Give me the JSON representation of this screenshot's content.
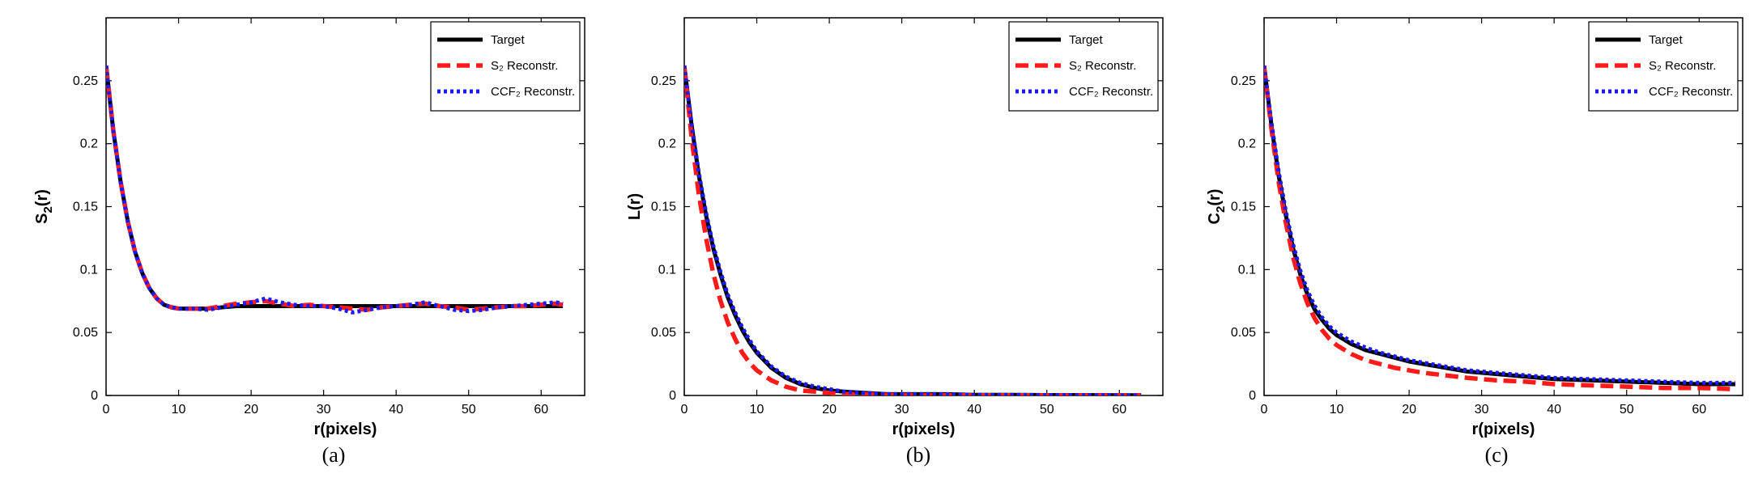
{
  "colors": {
    "target": "#000000",
    "s2": "#ff1a1a",
    "ccf2": "#1a1aff"
  },
  "chart_data": [
    {
      "type": "line",
      "ylabel_main": "S",
      "ylabel_sub": "2",
      "ylabel_tail": "(r)",
      "xlabel": "r(pixels)",
      "caption": "(a)",
      "xlim": [
        0,
        66
      ],
      "ylim": [
        0,
        0.3
      ],
      "xticks": [
        0,
        10,
        20,
        30,
        40,
        50,
        60
      ],
      "yticks": [
        0,
        0.05,
        0.1,
        0.15,
        0.2,
        0.25
      ],
      "ytick_labels": [
        "0",
        "0.05",
        "0.1",
        "0.15",
        "0.2",
        "0.25"
      ],
      "legend": [
        "Target",
        "S₂ Reconstr.",
        "CCF₂ Reconstr."
      ],
      "series": [
        {
          "name": "Target",
          "style": "solid",
          "x": [
            0,
            1,
            2,
            3,
            4,
            5,
            6,
            7,
            8,
            9,
            10,
            12,
            14,
            16,
            18,
            20,
            22,
            24,
            26,
            28,
            30,
            32,
            34,
            36,
            38,
            40,
            42,
            44,
            46,
            48,
            50,
            52,
            54,
            56,
            58,
            60,
            62,
            63
          ],
          "y": [
            0.262,
            0.21,
            0.17,
            0.138,
            0.114,
            0.097,
            0.085,
            0.077,
            0.072,
            0.07,
            0.069,
            0.069,
            0.069,
            0.07,
            0.071,
            0.071,
            0.071,
            0.071,
            0.071,
            0.071,
            0.071,
            0.071,
            0.071,
            0.071,
            0.071,
            0.071,
            0.071,
            0.071,
            0.071,
            0.071,
            0.071,
            0.071,
            0.071,
            0.071,
            0.071,
            0.071,
            0.071,
            0.071
          ]
        },
        {
          "name": "S₂ Reconstr.",
          "style": "dashed",
          "x": [
            0,
            1,
            2,
            3,
            4,
            5,
            6,
            7,
            8,
            9,
            10,
            12,
            14,
            16,
            18,
            20,
            22,
            24,
            26,
            28,
            30,
            32,
            34,
            36,
            38,
            40,
            42,
            44,
            46,
            48,
            50,
            52,
            54,
            56,
            58,
            60,
            62,
            63
          ],
          "y": [
            0.262,
            0.21,
            0.17,
            0.138,
            0.114,
            0.097,
            0.085,
            0.077,
            0.072,
            0.07,
            0.069,
            0.069,
            0.069,
            0.071,
            0.073,
            0.074,
            0.075,
            0.073,
            0.071,
            0.072,
            0.071,
            0.07,
            0.069,
            0.068,
            0.07,
            0.071,
            0.072,
            0.073,
            0.071,
            0.07,
            0.068,
            0.069,
            0.07,
            0.071,
            0.071,
            0.072,
            0.073,
            0.072
          ]
        },
        {
          "name": "CCF₂ Reconstr.",
          "style": "dotted",
          "x": [
            0,
            1,
            2,
            3,
            4,
            5,
            6,
            7,
            8,
            9,
            10,
            12,
            14,
            16,
            18,
            20,
            22,
            24,
            26,
            28,
            30,
            32,
            34,
            36,
            38,
            40,
            42,
            44,
            46,
            48,
            50,
            52,
            54,
            56,
            58,
            60,
            62,
            63
          ],
          "y": [
            0.262,
            0.21,
            0.17,
            0.138,
            0.114,
            0.097,
            0.085,
            0.077,
            0.072,
            0.07,
            0.069,
            0.069,
            0.068,
            0.07,
            0.072,
            0.074,
            0.077,
            0.074,
            0.072,
            0.071,
            0.071,
            0.069,
            0.066,
            0.068,
            0.07,
            0.071,
            0.072,
            0.074,
            0.071,
            0.068,
            0.067,
            0.068,
            0.07,
            0.071,
            0.072,
            0.073,
            0.074,
            0.073
          ]
        }
      ]
    },
    {
      "type": "line",
      "ylabel_main": "L(r)",
      "ylabel_sub": "",
      "ylabel_tail": "",
      "xlabel": "r(pixels)",
      "caption": "(b)",
      "xlim": [
        0,
        66
      ],
      "ylim": [
        0,
        0.3
      ],
      "xticks": [
        0,
        10,
        20,
        30,
        40,
        50,
        60
      ],
      "yticks": [
        0,
        0.05,
        0.1,
        0.15,
        0.2,
        0.25
      ],
      "ytick_labels": [
        "0",
        "0.05",
        "0.1",
        "0.15",
        "0.2",
        "0.25"
      ],
      "legend": [
        "Target",
        "S₂ Reconstr.",
        "CCF₂ Reconstr."
      ],
      "series": [
        {
          "name": "Target",
          "style": "solid",
          "x": [
            0,
            1,
            2,
            3,
            4,
            5,
            6,
            7,
            8,
            9,
            10,
            12,
            14,
            16,
            18,
            20,
            22,
            25,
            28,
            32,
            36,
            40,
            45,
            50,
            55,
            60,
            63
          ],
          "y": [
            0.262,
            0.215,
            0.175,
            0.143,
            0.117,
            0.096,
            0.078,
            0.064,
            0.052,
            0.042,
            0.034,
            0.022,
            0.014,
            0.009,
            0.006,
            0.004,
            0.003,
            0.002,
            0.001,
            0.001,
            0.001,
            0.0005,
            0.0005,
            0.0003,
            0.0003,
            0.0002,
            0.0002
          ]
        },
        {
          "name": "S₂ Reconstr.",
          "style": "dashed",
          "x": [
            0,
            1,
            2,
            3,
            4,
            5,
            6,
            7,
            8,
            9,
            10,
            12,
            14,
            16,
            18,
            20,
            22,
            25,
            28,
            32,
            36,
            40,
            45,
            50,
            55,
            60,
            63
          ],
          "y": [
            0.262,
            0.205,
            0.16,
            0.125,
            0.097,
            0.075,
            0.058,
            0.045,
            0.034,
            0.026,
            0.02,
            0.012,
            0.007,
            0.004,
            0.003,
            0.002,
            0.001,
            0.001,
            0.0005,
            0.0003,
            0.0002,
            0.0002,
            0.0001,
            0.0001,
            0.0001,
            0.0001,
            0.0001
          ]
        },
        {
          "name": "CCF₂ Reconstr.",
          "style": "dotted",
          "x": [
            0,
            1,
            2,
            3,
            4,
            5,
            6,
            7,
            8,
            9,
            10,
            12,
            14,
            16,
            18,
            20,
            22,
            25,
            28,
            32,
            36,
            40,
            45,
            50,
            55,
            60,
            63
          ],
          "y": [
            0.262,
            0.216,
            0.177,
            0.145,
            0.119,
            0.098,
            0.08,
            0.066,
            0.054,
            0.044,
            0.035,
            0.023,
            0.015,
            0.01,
            0.007,
            0.005,
            0.003,
            0.002,
            0.001,
            0.001,
            0.001,
            0.0005,
            0.0005,
            0.0003,
            0.0003,
            0.0002,
            0.0002
          ]
        }
      ]
    },
    {
      "type": "line",
      "ylabel_main": "C",
      "ylabel_sub": "2",
      "ylabel_tail": "(r)",
      "xlabel": "r(pixels)",
      "caption": "(c)",
      "xlim": [
        0,
        66
      ],
      "ylim": [
        0,
        0.3
      ],
      "xticks": [
        0,
        10,
        20,
        30,
        40,
        50,
        60
      ],
      "yticks": [
        0,
        0.05,
        0.1,
        0.15,
        0.2,
        0.25
      ],
      "ytick_labels": [
        "0",
        "0.05",
        "0.1",
        "0.15",
        "0.2",
        "0.25"
      ],
      "legend": [
        "Target",
        "S₂ Reconstr.",
        "CCF₂ Reconstr."
      ],
      "series": [
        {
          "name": "Target",
          "style": "solid",
          "x": [
            0,
            1,
            2,
            3,
            4,
            5,
            6,
            7,
            8,
            9,
            10,
            12,
            14,
            16,
            18,
            20,
            22,
            25,
            28,
            32,
            36,
            40,
            45,
            50,
            55,
            60,
            65
          ],
          "y": [
            0.262,
            0.215,
            0.175,
            0.143,
            0.117,
            0.096,
            0.08,
            0.068,
            0.06,
            0.053,
            0.048,
            0.041,
            0.036,
            0.033,
            0.03,
            0.027,
            0.025,
            0.022,
            0.019,
            0.017,
            0.015,
            0.013,
            0.012,
            0.011,
            0.01,
            0.009,
            0.009
          ]
        },
        {
          "name": "S₂ Reconstr.",
          "style": "dashed",
          "x": [
            0,
            1,
            2,
            3,
            4,
            5,
            6,
            7,
            8,
            9,
            10,
            12,
            14,
            16,
            18,
            20,
            22,
            25,
            28,
            32,
            36,
            40,
            45,
            50,
            55,
            60,
            65
          ],
          "y": [
            0.262,
            0.212,
            0.17,
            0.137,
            0.11,
            0.089,
            0.073,
            0.061,
            0.052,
            0.045,
            0.04,
            0.033,
            0.028,
            0.025,
            0.022,
            0.02,
            0.018,
            0.016,
            0.014,
            0.012,
            0.011,
            0.009,
            0.008,
            0.007,
            0.006,
            0.006,
            0.005
          ]
        },
        {
          "name": "CCF₂ Reconstr.",
          "style": "dotted",
          "x": [
            0,
            1,
            2,
            3,
            4,
            5,
            6,
            7,
            8,
            9,
            10,
            12,
            14,
            16,
            18,
            20,
            22,
            25,
            28,
            32,
            36,
            40,
            45,
            50,
            55,
            60,
            65
          ],
          "y": [
            0.262,
            0.217,
            0.178,
            0.146,
            0.12,
            0.099,
            0.083,
            0.071,
            0.062,
            0.055,
            0.05,
            0.043,
            0.038,
            0.034,
            0.031,
            0.028,
            0.026,
            0.023,
            0.02,
            0.018,
            0.016,
            0.014,
            0.013,
            0.012,
            0.011,
            0.01,
            0.01
          ]
        }
      ]
    }
  ]
}
